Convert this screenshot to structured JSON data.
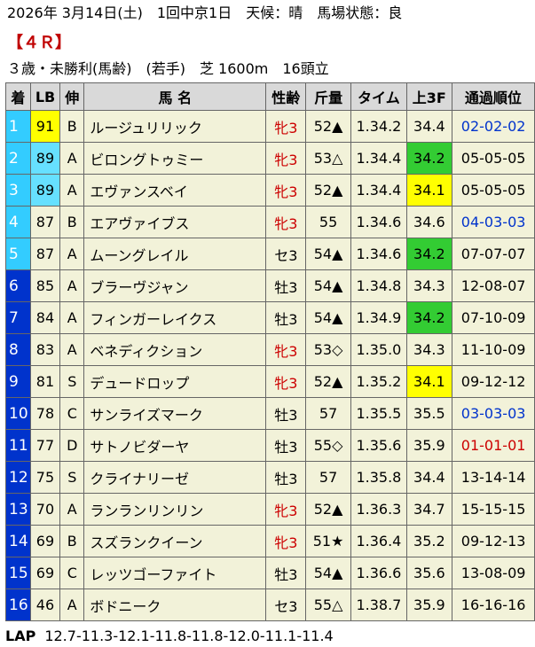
{
  "header": {
    "line": "2026年 3月14日(土)　1回中京1日　天候：晴　馬場状態：良",
    "race": "【４Ｒ】",
    "conditions": "３歳・未勝利(馬齢)　(若手)　芝 1600m　16頭立"
  },
  "columns": [
    "着",
    "LB",
    "伸",
    "馬 名",
    "性齢",
    "斤量",
    "タイム",
    "上3F",
    "通過順位"
  ],
  "rows": [
    {
      "rank": "1",
      "lb": "91",
      "nobi": "B",
      "name": "ルージュリリック",
      "sex": "牝3",
      "weight": "52▲",
      "time": "1.34.2",
      "f3": "34.4",
      "pos": "02-02-02"
    },
    {
      "rank": "2",
      "lb": "89",
      "nobi": "A",
      "name": "ビロングトゥミー",
      "sex": "牝3",
      "weight": "53△",
      "time": "1.34.4",
      "f3": "34.2",
      "pos": "05-05-05"
    },
    {
      "rank": "3",
      "lb": "89",
      "nobi": "A",
      "name": "エヴァンスベイ",
      "sex": "牝3",
      "weight": "52▲",
      "time": "1.34.4",
      "f3": "34.1",
      "pos": "05-05-05"
    },
    {
      "rank": "4",
      "lb": "87",
      "nobi": "B",
      "name": "エアヴァイブス",
      "sex": "牝3",
      "weight": "55",
      "time": "1.34.6",
      "f3": "34.6",
      "pos": "04-03-03"
    },
    {
      "rank": "5",
      "lb": "87",
      "nobi": "A",
      "name": "ムーングレイル",
      "sex": "セ3",
      "weight": "54▲",
      "time": "1.34.6",
      "f3": "34.2",
      "pos": "07-07-07"
    },
    {
      "rank": "6",
      "lb": "85",
      "nobi": "A",
      "name": "ブラーヴジャン",
      "sex": "牡3",
      "weight": "54▲",
      "time": "1.34.8",
      "f3": "34.3",
      "pos": "12-08-07"
    },
    {
      "rank": "7",
      "lb": "84",
      "nobi": "A",
      "name": "フィンガーレイクス",
      "sex": "牡3",
      "weight": "54▲",
      "time": "1.34.9",
      "f3": "34.2",
      "pos": "07-10-09"
    },
    {
      "rank": "8",
      "lb": "83",
      "nobi": "A",
      "name": "ベネディクション",
      "sex": "牝3",
      "weight": "53◇",
      "time": "1.35.0",
      "f3": "34.3",
      "pos": "11-10-09"
    },
    {
      "rank": "9",
      "lb": "81",
      "nobi": "S",
      "name": "デュードロップ",
      "sex": "牝3",
      "weight": "52▲",
      "time": "1.35.2",
      "f3": "34.1",
      "pos": "09-12-12"
    },
    {
      "rank": "10",
      "lb": "78",
      "nobi": "C",
      "name": "サンライズマーク",
      "sex": "牡3",
      "weight": "57",
      "time": "1.35.5",
      "f3": "35.5",
      "pos": "03-03-03"
    },
    {
      "rank": "11",
      "lb": "77",
      "nobi": "D",
      "name": "サトノビダーヤ",
      "sex": "牡3",
      "weight": "55◇",
      "time": "1.35.6",
      "f3": "35.9",
      "pos": "01-01-01"
    },
    {
      "rank": "12",
      "lb": "75",
      "nobi": "S",
      "name": "クライナリーゼ",
      "sex": "牡3",
      "weight": "57",
      "time": "1.35.8",
      "f3": "34.4",
      "pos": "13-14-14"
    },
    {
      "rank": "13",
      "lb": "70",
      "nobi": "A",
      "name": "ランランリンリン",
      "sex": "牝3",
      "weight": "52▲",
      "time": "1.36.3",
      "f3": "34.7",
      "pos": "15-15-15"
    },
    {
      "rank": "14",
      "lb": "69",
      "nobi": "B",
      "name": "スズランクイーン",
      "sex": "牝3",
      "weight": "51★",
      "time": "1.36.4",
      "f3": "35.2",
      "pos": "09-12-13"
    },
    {
      "rank": "15",
      "lb": "69",
      "nobi": "C",
      "name": "レッツゴーファイト",
      "sex": "牡3",
      "weight": "54▲",
      "time": "1.36.6",
      "f3": "35.6",
      "pos": "13-08-09"
    },
    {
      "rank": "16",
      "lb": "46",
      "nobi": "A",
      "name": "ボドニーク",
      "sex": "セ3",
      "weight": "55△",
      "time": "1.38.7",
      "f3": "35.9",
      "pos": "16-16-16"
    }
  ],
  "lap": {
    "label": "LAP",
    "values": "12.7-11.3-12.1-11.8-11.8-12.0-11.1-11.4"
  },
  "colors": {
    "rank_cyan": "#33ccff",
    "rank_blue": "#0033cc",
    "lb_highlight": "#ffff00",
    "lb_cyan": "#66e0ff",
    "f3_green": "#33cc33",
    "f3_yellow": "#ffff00",
    "female_text": "#cc0000",
    "pos_blue": "#0033cc",
    "pos_red": "#cc0000"
  }
}
